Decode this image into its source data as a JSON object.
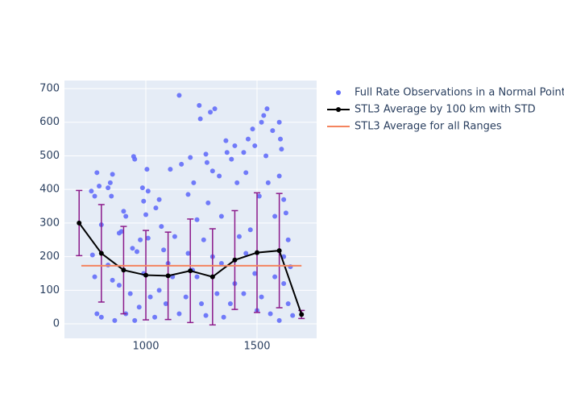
{
  "chart_data": {
    "type": "scatter",
    "xlim": [
      634,
      1768
    ],
    "ylim": [
      -43,
      724
    ],
    "xticks": [
      1000,
      1500
    ],
    "yticks": [
      0,
      100,
      200,
      300,
      400,
      500,
      600,
      700
    ],
    "grid": true,
    "legend": "right",
    "background": "#e5ecf6",
    "series": [
      {
        "name": "Full Rate Observations in a Normal Point",
        "type": "scatter",
        "color": "#636efa",
        "x": [
          755,
          780,
          790,
          830,
          840,
          850,
          845,
          770,
          800,
          760,
          770,
          780,
          800,
          830,
          850,
          880,
          890,
          900,
          910,
          945,
          950,
          940,
          960,
          975,
          985,
          990,
          1005,
          1010,
          1000,
          1010,
          1045,
          1060,
          1080,
          1110,
          1150,
          1160,
          1200,
          1190,
          1215,
          1240,
          1245,
          1275,
          1270,
          1290,
          1310,
          1300,
          1330,
          1360,
          1365,
          1385,
          1400,
          1440,
          1460,
          1480,
          1490,
          1520,
          1530,
          1545,
          1540,
          1570,
          1600,
          1605,
          1610,
          1600,
          1620,
          1630,
          1640,
          1650,
          1620,
          1640,
          1660,
          1600,
          1560,
          1520,
          1490,
          1450,
          1420,
          1400,
          1380,
          1350,
          1320,
          1300,
          1260,
          1230,
          1210,
          1180,
          1150,
          1120,
          1090,
          1060,
          1040,
          1020,
          990,
          970,
          950,
          930,
          910,
          880,
          860,
          1130,
          1250,
          1270,
          1340,
          1440,
          1470,
          1510,
          1550,
          1580,
          1340,
          1410,
          1190,
          1070,
          1100,
          1230,
          1280,
          1450,
          1500,
          1580,
          1620
        ],
        "values": [
          395,
          450,
          410,
          405,
          420,
          445,
          380,
          380,
          295,
          205,
          140,
          30,
          20,
          175,
          130,
          115,
          275,
          335,
          320,
          498,
          490,
          225,
          215,
          250,
          405,
          365,
          460,
          395,
          325,
          255,
          345,
          370,
          220,
          460,
          680,
          475,
          495,
          385,
          420,
          650,
          610,
          480,
          505,
          630,
          640,
          455,
          440,
          545,
          510,
          490,
          530,
          510,
          550,
          580,
          530,
          600,
          620,
          640,
          500,
          575,
          600,
          550,
          520,
          440,
          370,
          330,
          250,
          170,
          120,
          60,
          25,
          10,
          30,
          80,
          150,
          210,
          260,
          120,
          60,
          20,
          90,
          200,
          250,
          310,
          160,
          80,
          30,
          140,
          60,
          100,
          20,
          80,
          150,
          50,
          10,
          90,
          30,
          270,
          10,
          260,
          60,
          25,
          180,
          90,
          280,
          380,
          420,
          320,
          320,
          420,
          210,
          290,
          180,
          140,
          360,
          450,
          40,
          140,
          200
        ]
      },
      {
        "name": "STL3 Average by 100 km with STD",
        "type": "line",
        "color": "#000000",
        "error_color": "#8b1a8b",
        "x": [
          700,
          800,
          900,
          1000,
          1100,
          1200,
          1300,
          1400,
          1500,
          1600,
          1700
        ],
        "values": [
          300,
          210,
          160,
          145,
          143,
          158,
          140,
          190,
          212,
          218,
          28
        ],
        "errors": [
          97,
          145,
          130,
          133,
          130,
          154,
          143,
          147,
          178,
          170,
          12
        ]
      },
      {
        "name": "STL3 Average for all Ranges",
        "type": "line",
        "color": "#f4845f",
        "x": [
          710,
          1700
        ],
        "values": [
          173,
          173
        ]
      }
    ]
  }
}
